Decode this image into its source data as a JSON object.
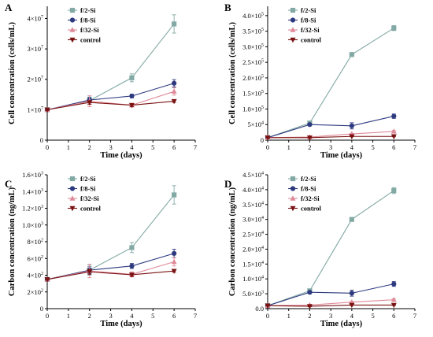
{
  "colors": {
    "f2": "#82A9A4",
    "f8": "#2E3A80",
    "f32": "#E08A99",
    "control": "#7A1212"
  },
  "chart_data": [
    {
      "panel": "A",
      "type": "line",
      "xlabel": "Time (days)",
      "ylabel": "Cell concentration  (cells/mL)",
      "x": [
        0,
        2,
        4,
        6
      ],
      "xlim": [
        0,
        7
      ],
      "xticks": [
        "0",
        "1",
        "2",
        "3",
        "4",
        "5",
        "6",
        "7"
      ],
      "ylim": [
        0,
        4.4
      ],
      "yticks": [
        {
          "v": 0,
          "m": "0",
          "e": ""
        },
        {
          "v": 1,
          "m": "1×10",
          "e": "7"
        },
        {
          "v": 2,
          "m": "2×10",
          "e": "7"
        },
        {
          "v": 3,
          "m": "3×10",
          "e": "7"
        },
        {
          "v": 4,
          "m": "4×10",
          "e": "7"
        }
      ],
      "legend": "top-left",
      "series": [
        {
          "name": "f/2-Si",
          "marker": "square",
          "color": "#82A9A4",
          "values": [
            1.0,
            1.3,
            2.05,
            3.82
          ],
          "err": [
            0.03,
            0.12,
            0.13,
            0.3
          ]
        },
        {
          "name": "f/8-Si",
          "marker": "circle",
          "color": "#2E3A80",
          "values": [
            1.0,
            1.32,
            1.45,
            1.87
          ],
          "err": [
            0.03,
            0.08,
            0.06,
            0.12
          ]
        },
        {
          "name": "f/32-Si",
          "marker": "triangle",
          "color": "#E08A99",
          "values": [
            1.0,
            1.28,
            1.15,
            1.6
          ],
          "err": [
            0.03,
            0.18,
            0.06,
            0.12
          ]
        },
        {
          "name": "control",
          "marker": "triangle-down",
          "color": "#7A1212",
          "values": [
            1.0,
            1.24,
            1.15,
            1.28
          ],
          "err": [
            0.03,
            0.06,
            0.05,
            0.04
          ]
        }
      ]
    },
    {
      "panel": "B",
      "type": "line",
      "xlabel": "Time (days)",
      "ylabel": "Cell concentration  (cells/mL)",
      "x": [
        0,
        2,
        4,
        6
      ],
      "xlim": [
        0,
        7
      ],
      "xticks": [
        "0",
        "1",
        "2",
        "3",
        "4",
        "5",
        "6",
        "7"
      ],
      "ylim": [
        0,
        4.3
      ],
      "yticks": [
        {
          "v": 0,
          "m": "0",
          "e": ""
        },
        {
          "v": 0.5,
          "m": "5×10",
          "e": "4"
        },
        {
          "v": 1.0,
          "m": "1.0×10",
          "e": "5"
        },
        {
          "v": 1.5,
          "m": "1.5×10",
          "e": "5"
        },
        {
          "v": 2.0,
          "m": "2.0×10",
          "e": "5"
        },
        {
          "v": 2.5,
          "m": "2.5×10",
          "e": "5"
        },
        {
          "v": 3.0,
          "m": "3.0×10",
          "e": "5"
        },
        {
          "v": 3.5,
          "m": "3.5×10",
          "e": "5"
        },
        {
          "v": 4.0,
          "m": "4.0×10",
          "e": "5"
        }
      ],
      "legend": "top-left",
      "series": [
        {
          "name": "f/2-Si",
          "marker": "square",
          "color": "#82A9A4",
          "values": [
            0.08,
            0.55,
            2.75,
            3.6
          ],
          "err": [
            0.01,
            0.04,
            0.03,
            0.08
          ]
        },
        {
          "name": "f/8-Si",
          "marker": "circle",
          "color": "#2E3A80",
          "values": [
            0.08,
            0.5,
            0.46,
            0.77
          ],
          "err": [
            0.01,
            0.04,
            0.1,
            0.07
          ]
        },
        {
          "name": "f/32-Si",
          "marker": "triangle",
          "color": "#E08A99",
          "values": [
            0.08,
            0.1,
            0.2,
            0.28
          ],
          "err": [
            0.01,
            0.02,
            0.02,
            0.03
          ]
        },
        {
          "name": "control",
          "marker": "triangle-down",
          "color": "#7A1212",
          "values": [
            0.08,
            0.08,
            0.12,
            0.12
          ],
          "err": [
            0.01,
            0.01,
            0.01,
            0.01
          ]
        }
      ]
    },
    {
      "panel": "C",
      "type": "line",
      "xlabel": "Time (days)",
      "ylabel": "Carbon concentration  (ng/mL)",
      "x": [
        0,
        2,
        4,
        6
      ],
      "xlim": [
        0,
        7
      ],
      "xticks": [
        "0",
        "1",
        "2",
        "3",
        "4",
        "5",
        "6",
        "7"
      ],
      "ylim": [
        0,
        16
      ],
      "yticks": [
        {
          "v": 0,
          "m": "0",
          "e": ""
        },
        {
          "v": 2,
          "m": "2×10",
          "e": "2"
        },
        {
          "v": 4,
          "m": "4×10",
          "e": "2"
        },
        {
          "v": 6,
          "m": "6×10",
          "e": "2"
        },
        {
          "v": 8,
          "m": "8×10",
          "e": "2"
        },
        {
          "v": 10,
          "m": "1.0×10",
          "e": "3"
        },
        {
          "v": 12,
          "m": "1.2×10",
          "e": "3"
        },
        {
          "v": 14,
          "m": "1.4×10",
          "e": "3"
        },
        {
          "v": 16,
          "m": "1.6×10",
          "e": "3"
        }
      ],
      "legend": "top-left",
      "series": [
        {
          "name": "f/2-Si",
          "marker": "square",
          "color": "#82A9A4",
          "values": [
            3.5,
            4.6,
            7.3,
            13.6
          ],
          "err": [
            0.1,
            0.6,
            0.6,
            1.1
          ]
        },
        {
          "name": "f/8-Si",
          "marker": "circle",
          "color": "#2E3A80",
          "values": [
            3.5,
            4.6,
            5.1,
            6.6
          ],
          "err": [
            0.1,
            0.4,
            0.3,
            0.5
          ]
        },
        {
          "name": "f/32-Si",
          "marker": "triangle",
          "color": "#E08A99",
          "values": [
            3.5,
            4.5,
            4.1,
            5.6
          ],
          "err": [
            0.1,
            0.8,
            0.3,
            0.5
          ]
        },
        {
          "name": "control",
          "marker": "triangle-down",
          "color": "#7A1212",
          "values": [
            3.5,
            4.4,
            4.05,
            4.5
          ],
          "err": [
            0.1,
            0.3,
            0.2,
            0.15
          ]
        }
      ]
    },
    {
      "panel": "D",
      "type": "line",
      "xlabel": "Time (days)",
      "ylabel": "Carbon concentration  (ng/mL)",
      "x": [
        0,
        2,
        4,
        6
      ],
      "xlim": [
        0,
        7
      ],
      "xticks": [
        "0",
        "1",
        "2",
        "3",
        "4",
        "5",
        "6",
        "7"
      ],
      "ylim": [
        0,
        4.5
      ],
      "yticks": [
        {
          "v": 0,
          "m": "0.0",
          "e": ""
        },
        {
          "v": 0.5,
          "m": "5.0×10",
          "e": "3"
        },
        {
          "v": 1.0,
          "m": "1.0×10",
          "e": "4"
        },
        {
          "v": 1.5,
          "m": "1.5×10",
          "e": "4"
        },
        {
          "v": 2.0,
          "m": "2.0×10",
          "e": "4"
        },
        {
          "v": 2.5,
          "m": "2.5×10",
          "e": "4"
        },
        {
          "v": 3.0,
          "m": "3.0×10",
          "e": "4"
        },
        {
          "v": 3.5,
          "m": "3.5×10",
          "e": "4"
        },
        {
          "v": 4.0,
          "m": "4.0×10",
          "e": "4"
        },
        {
          "v": 4.5,
          "m": "4.5×10",
          "e": "4"
        }
      ],
      "legend": "top-left",
      "series": [
        {
          "name": "f/2-Si",
          "marker": "square",
          "color": "#82A9A4",
          "values": [
            0.1,
            0.6,
            3.0,
            3.97
          ],
          "err": [
            0.01,
            0.05,
            0.03,
            0.1
          ]
        },
        {
          "name": "f/8-Si",
          "marker": "circle",
          "color": "#2E3A80",
          "values": [
            0.1,
            0.55,
            0.52,
            0.83
          ],
          "err": [
            0.01,
            0.05,
            0.1,
            0.08
          ]
        },
        {
          "name": "f/32-Si",
          "marker": "triangle",
          "color": "#E08A99",
          "values": [
            0.1,
            0.12,
            0.22,
            0.3
          ],
          "err": [
            0.01,
            0.02,
            0.02,
            0.03
          ]
        },
        {
          "name": "control",
          "marker": "triangle-down",
          "color": "#7A1212",
          "values": [
            0.1,
            0.08,
            0.12,
            0.12
          ],
          "err": [
            0.01,
            0.01,
            0.01,
            0.01
          ]
        }
      ]
    }
  ]
}
